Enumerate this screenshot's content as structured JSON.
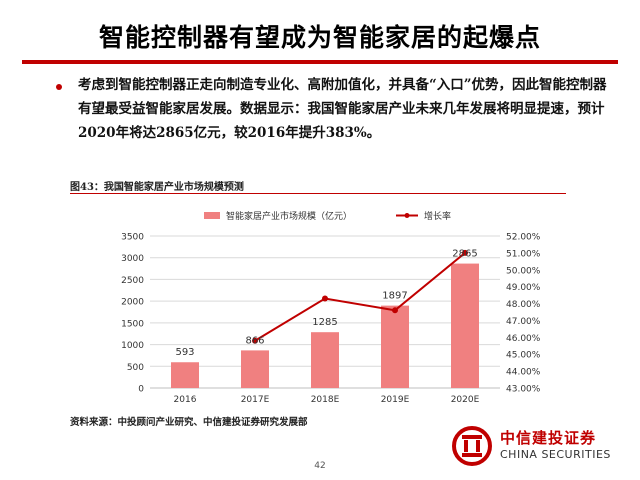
{
  "slide_title": "智能控制器有望成为智能家居的起爆点",
  "body_text": "考虑到智能控制器正走向制造专业化、高附加值化，并具备“入口”优势，因此智能控制器有望最受益智能家居发展。数据显示：我国智能家居产业未来几年发展将明显提速，预计2020年将达2865亿元，较2016年提升383%。",
  "figure_caption": "图43：我国智能家居产业市场规模预测",
  "source_note": "资料来源：中投顾问产业研究、中信建投证券研究发展部",
  "page_number": "42",
  "logo": {
    "name_cn": "中信建投证券",
    "name_en": "CHINA SECURITIES"
  },
  "colors": {
    "accent": "#c00000",
    "bar": "#f08080",
    "line": "#c00000"
  },
  "chart_data": {
    "type": "bar+line",
    "categories": [
      "2016",
      "2017E",
      "2018E",
      "2019E",
      "2020E"
    ],
    "series": [
      {
        "name": "智能家居产业市场规模（亿元）",
        "type": "bar",
        "axis": "left",
        "values": [
          593,
          866,
          1285,
          1897,
          2865
        ],
        "labels": [
          "593",
          "866",
          "1285",
          "1897",
          "2865"
        ]
      },
      {
        "name": "增长率",
        "type": "line",
        "axis": "right",
        "values": [
          null,
          45.8,
          48.3,
          47.6,
          51.0
        ]
      }
    ],
    "left_axis": {
      "ylim": [
        0,
        3500
      ],
      "ticks": [
        "0",
        "500",
        "1000",
        "1500",
        "2000",
        "2500",
        "3000",
        "3500"
      ]
    },
    "right_axis": {
      "ylim": [
        43,
        52
      ],
      "ticks": [
        "43.00%",
        "44.00%",
        "45.00%",
        "46.00%",
        "47.00%",
        "48.00%",
        "49.00%",
        "50.00%",
        "51.00%",
        "52.00%"
      ]
    },
    "grid": true,
    "legend_position": "top"
  }
}
